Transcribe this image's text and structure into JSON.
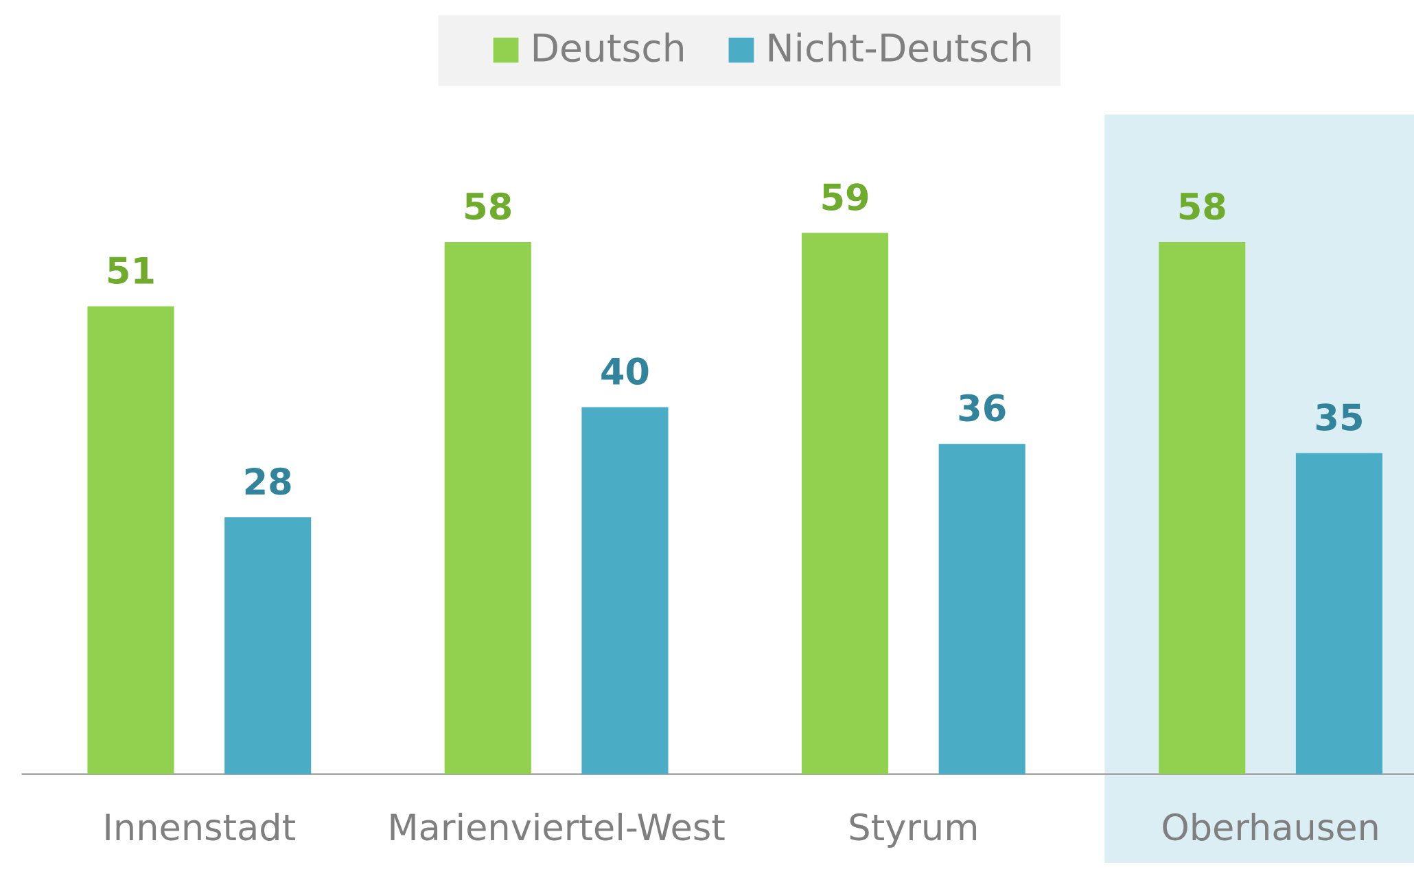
{
  "chart_data": {
    "type": "bar",
    "categories": [
      "Innenstadt",
      "Marienviertel-West",
      "Styrum",
      "Oberhausen"
    ],
    "series": [
      {
        "name": "Deutsch",
        "color": "#92d050",
        "label_color": "#6fac2e",
        "values": [
          51,
          58,
          59,
          58
        ]
      },
      {
        "name": "Nicht-Deutsch",
        "color": "#4bacc6",
        "label_color": "#31849b",
        "values": [
          28,
          40,
          36,
          35
        ]
      }
    ],
    "ylim": [
      0,
      70
    ],
    "highlight": "Oberhausen",
    "legend": "top"
  }
}
